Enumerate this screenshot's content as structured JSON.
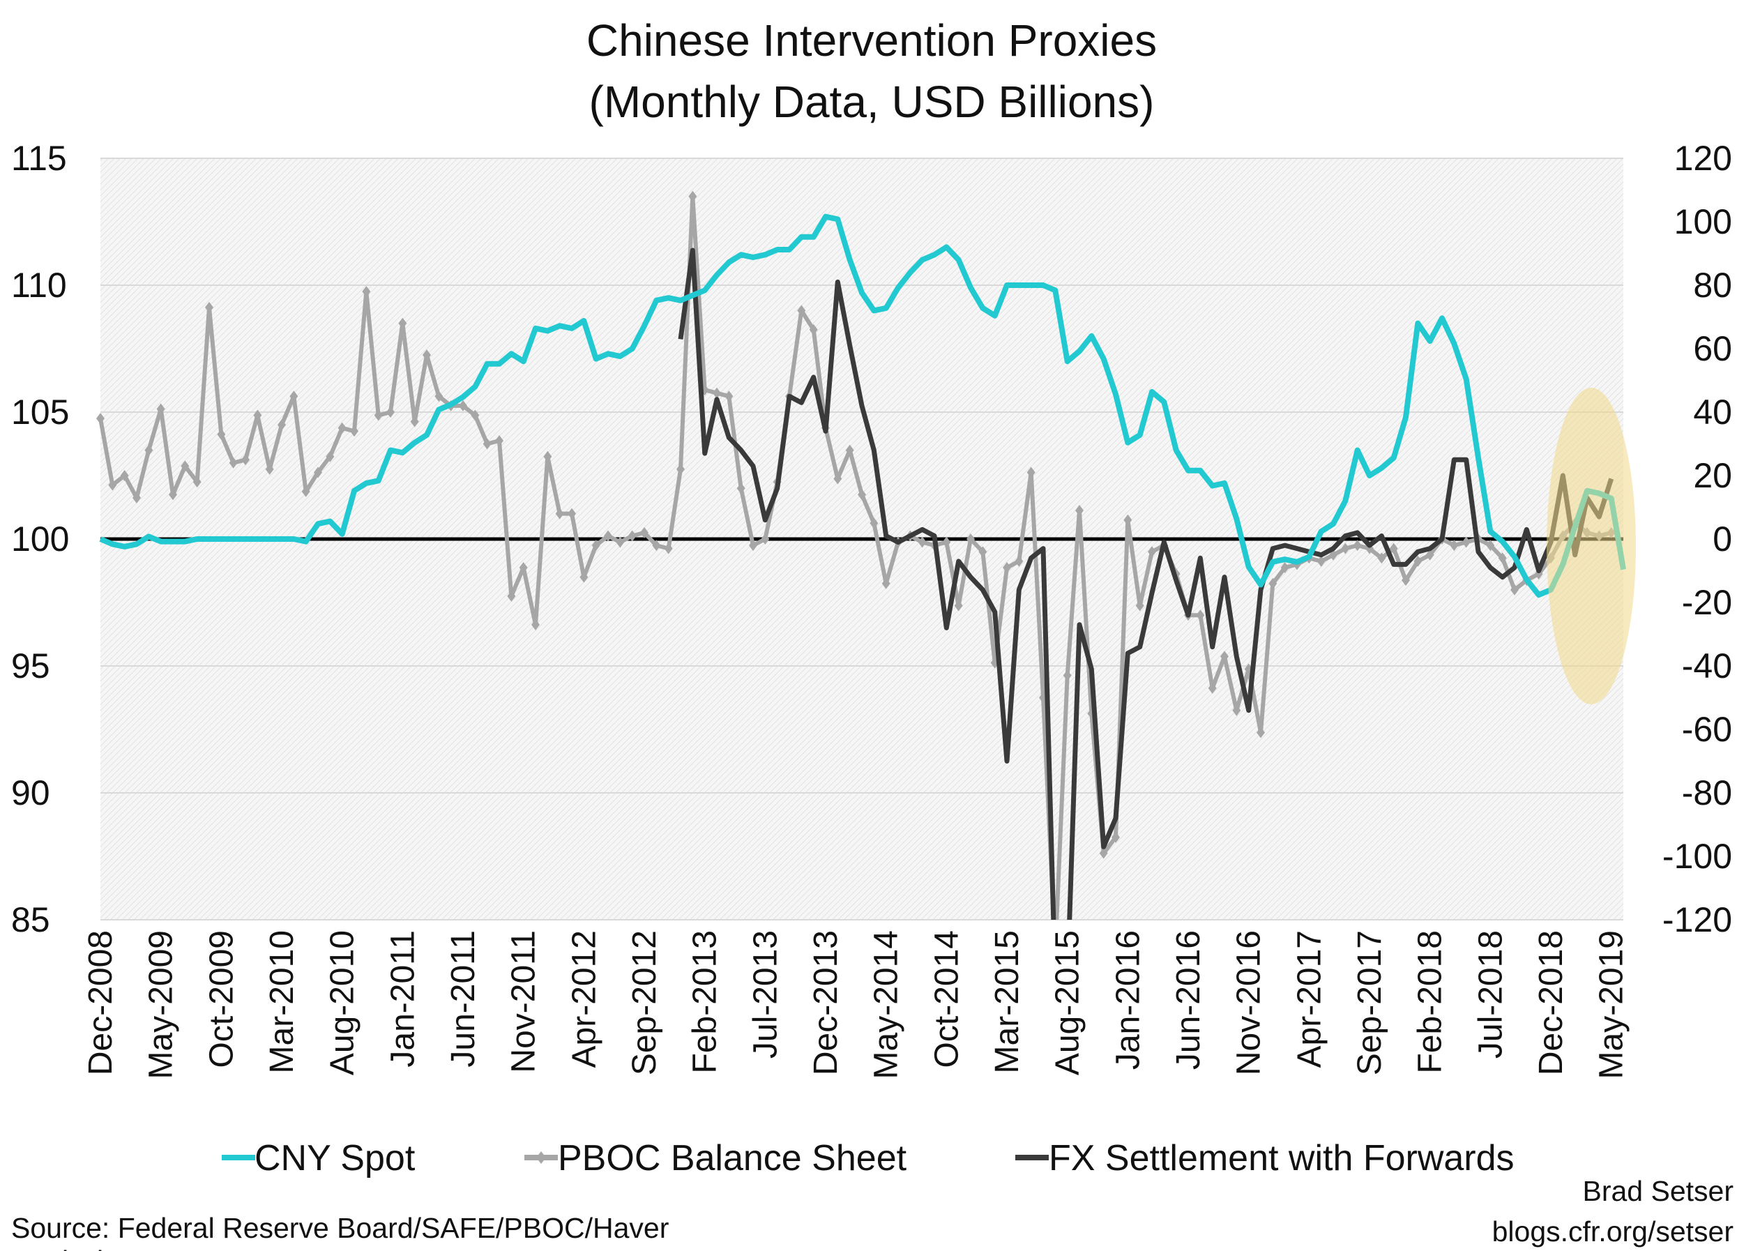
{
  "chart_data": {
    "type": "line",
    "title": "Chinese Intervention Proxies",
    "subtitle": "(Monthly Data, USD Billions)",
    "x_tick_labels": [
      "Dec-2008",
      "May-2009",
      "Oct-2009",
      "Mar-2010",
      "Aug-2010",
      "Jan-2011",
      "Jun-2011",
      "Nov-2011",
      "Apr-2012",
      "Sep-2012",
      "Feb-2013",
      "Jul-2013",
      "Dec-2013",
      "May-2014",
      "Oct-2014",
      "Mar-2015",
      "Aug-2015",
      "Jan-2016",
      "Jun-2016",
      "Nov-2016",
      "Apr-2017",
      "Sep-2017",
      "Feb-2018",
      "Jul-2018",
      "Dec-2018",
      "May-2019"
    ],
    "x_start": "Dec-2008",
    "x_end": "May-2019",
    "frequency": "monthly",
    "y_left": {
      "ylim": [
        85,
        115
      ],
      "ticks": [
        85,
        90,
        95,
        100,
        105,
        110,
        115
      ]
    },
    "y_right": {
      "ylim": [
        -120,
        120
      ],
      "ticks": [
        -120,
        -100,
        -80,
        -60,
        -40,
        -20,
        0,
        20,
        40,
        60,
        80,
        100,
        120
      ]
    },
    "grid": true,
    "legend_placement": "bottom",
    "highlight": {
      "type": "ellipse",
      "from": "Nov-2018",
      "to": "May-2019",
      "color": "#f3d88a"
    },
    "series": [
      {
        "name": "CNY Spot",
        "axis": "left",
        "color": "#22c9d0",
        "values": [
          100,
          99.8,
          99.7,
          99.8,
          100.1,
          99.9,
          99.9,
          99.9,
          100,
          100,
          100,
          100,
          100,
          100,
          100,
          100,
          100,
          99.9,
          100.6,
          100.7,
          100.2,
          101.9,
          102.2,
          102.3,
          103.5,
          103.4,
          103.8,
          104.1,
          105.1,
          105.3,
          105.6,
          106.0,
          106.9,
          106.9,
          107.3,
          107.0,
          108.3,
          108.2,
          108.4,
          108.3,
          108.6,
          107.1,
          107.3,
          107.2,
          107.5,
          108.4,
          109.4,
          109.5,
          109.4,
          109.6,
          109.8,
          110.4,
          110.9,
          111.2,
          111.1,
          111.2,
          111.4,
          111.4,
          111.9,
          111.9,
          112.7,
          112.6,
          111.0,
          109.7,
          109.0,
          109.1,
          109.9,
          110.5,
          111.0,
          111.2,
          111.5,
          111.0,
          109.9,
          109.1,
          108.8,
          110.0,
          110.0,
          110.0,
          110.0,
          109.8,
          107.0,
          107.4,
          108.0,
          107.1,
          105.7,
          103.8,
          104.1,
          105.8,
          105.4,
          103.5,
          102.7,
          102.7,
          102.1,
          102.2,
          100.8,
          98.9,
          98.2,
          99.1,
          99.2,
          99.1,
          99.3,
          100.3,
          100.6,
          101.5,
          103.5,
          102.5,
          102.8,
          103.2,
          104.8,
          108.5,
          107.8,
          108.7,
          107.7,
          106.3,
          103.2,
          100.3,
          99.9,
          99.3,
          98.4,
          97.8,
          98.0,
          99.0,
          100.5,
          101.9,
          101.8,
          101.6,
          98.8
        ]
      },
      {
        "name": "PBOC Balance Sheet",
        "axis": "right",
        "color": "#a6a6a6",
        "marker": "diamond",
        "values": [
          38,
          17,
          20,
          13,
          28,
          41,
          14,
          23,
          18,
          73,
          33,
          24,
          25,
          39,
          22,
          36,
          45,
          15,
          21,
          26,
          35,
          34,
          78,
          39,
          40,
          68,
          37,
          58,
          45,
          42,
          42,
          39,
          30,
          31,
          -18,
          -9,
          -27,
          26,
          8,
          8,
          -12,
          -2,
          1,
          -1,
          1,
          2,
          -2,
          -3,
          22,
          108,
          47,
          46,
          45,
          16,
          -2,
          0,
          18,
          45,
          72,
          66,
          35,
          19,
          28,
          14,
          5,
          -14,
          -1,
          1,
          -1,
          -2,
          -1,
          -21,
          0,
          -4,
          -39,
          -9,
          -7,
          21,
          -50,
          -130,
          -43,
          9,
          -55,
          -99,
          -94,
          6,
          -21,
          -4,
          -2,
          -11,
          -24,
          -24,
          -47,
          -37,
          -54,
          -41,
          -61,
          -14,
          -9,
          -8,
          -6,
          -7,
          -5,
          -3,
          -2,
          -3,
          -6,
          -3,
          -13,
          -7,
          -5,
          0,
          -2,
          -1,
          0,
          -2,
          -6,
          -16,
          -13,
          -11,
          -6,
          1,
          5,
          2,
          1,
          2
        ]
      },
      {
        "name": "FX Settlement with Forwards",
        "axis": "right",
        "color": "#3a3a3a",
        "values": [
          null,
          null,
          null,
          null,
          null,
          null,
          null,
          null,
          null,
          null,
          null,
          null,
          null,
          null,
          null,
          null,
          null,
          null,
          null,
          null,
          null,
          null,
          null,
          null,
          null,
          null,
          null,
          null,
          null,
          null,
          null,
          null,
          null,
          null,
          null,
          null,
          null,
          null,
          null,
          null,
          null,
          null,
          null,
          null,
          null,
          null,
          null,
          null,
          63,
          91,
          27,
          44,
          32,
          28,
          23,
          6,
          16,
          45,
          43,
          51,
          34,
          81,
          61,
          42,
          28,
          1,
          -1,
          1,
          3,
          1,
          -28,
          -7,
          -12,
          -16,
          -23,
          -70,
          -16,
          -6,
          -3,
          -140,
          -140,
          -27,
          -41,
          -97,
          -88,
          -36,
          -34,
          -17,
          -1,
          -13,
          -24,
          -6,
          -34,
          -12,
          -37,
          -54,
          -16,
          -3,
          -2,
          -3,
          -4,
          -5,
          -3,
          1,
          2,
          -2,
          1,
          -8,
          -8,
          -4,
          -3,
          0,
          25,
          25,
          -4,
          -9,
          -12,
          -9,
          3,
          -10,
          -1,
          20,
          -5,
          13,
          7,
          19
        ]
      }
    ]
  },
  "footer": {
    "source_line1": "Source: Federal Reserve Board/SAFE/PBOC/Haver",
    "source_line2": "Analysis",
    "author": "Brad Setser",
    "blog": "blogs.cfr.org/setser"
  }
}
